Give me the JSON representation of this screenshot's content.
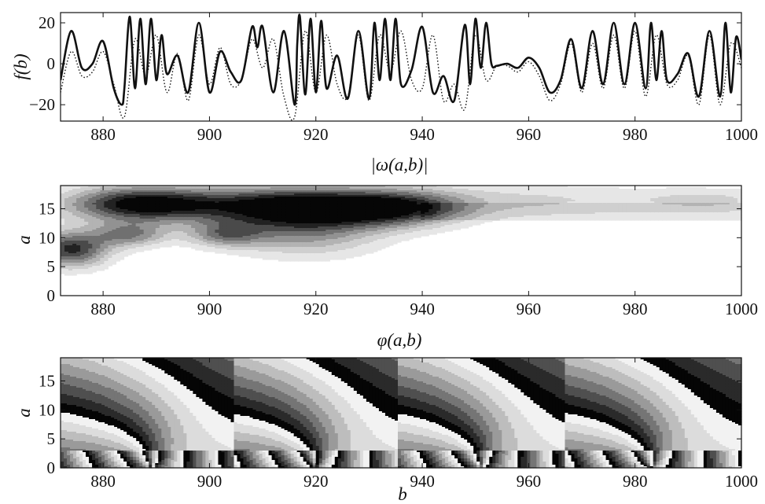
{
  "chart_data": [
    {
      "type": "line",
      "ylabel": "f(b)",
      "xlim": [
        872,
        1000
      ],
      "ylim": [
        -28,
        25
      ],
      "x_ticks": [
        "880",
        "900",
        "920",
        "940",
        "960",
        "980",
        "1000"
      ],
      "y_ticks": [
        "20",
        "0",
        "−20"
      ],
      "series": [
        {
          "style": "solid",
          "x": [
            872,
            874,
            876,
            878,
            880,
            882,
            883.5,
            884,
            885,
            886,
            887,
            888,
            889,
            890,
            891,
            892,
            894,
            896,
            898,
            900,
            902,
            904,
            906,
            908,
            909,
            910,
            912,
            914,
            916,
            916.5,
            917,
            918,
            919,
            920,
            921,
            922,
            924,
            926,
            928,
            930,
            931,
            932,
            933,
            934,
            935,
            936,
            938,
            940,
            942,
            944,
            946,
            948,
            949,
            950,
            951,
            952,
            953,
            954,
            956,
            958,
            960,
            962,
            964,
            966,
            968,
            970,
            972,
            974,
            976,
            978,
            980,
            982,
            983,
            984,
            985,
            986,
            988,
            990,
            992,
            994,
            996,
            997,
            998,
            999,
            1000
          ],
          "y": [
            -8,
            16,
            -2,
            0,
            11,
            -12,
            -20,
            -12,
            23,
            -12,
            22,
            -10,
            22,
            -8,
            14,
            -5,
            4,
            -14,
            20,
            -14,
            6,
            -4,
            -8,
            18,
            8,
            18,
            -14,
            16,
            -20,
            10,
            23,
            -15,
            22,
            -14,
            21,
            -12,
            4,
            -17,
            16,
            -17,
            20,
            -8,
            22,
            -8,
            22,
            -10,
            -3,
            18,
            -14,
            -6,
            -18,
            19,
            -10,
            22,
            -2,
            20,
            0,
            -1,
            0,
            -2,
            3,
            -2,
            -14,
            -8,
            12,
            -12,
            16,
            -10,
            20,
            -10,
            20,
            -12,
            20,
            -8,
            16,
            -8,
            -5,
            5,
            -16,
            16,
            -16,
            20,
            -14,
            13,
            2
          ]
        },
        {
          "style": "dotted",
          "x": [
            872,
            874,
            876,
            878,
            880,
            882,
            884,
            886,
            888,
            890,
            892,
            894,
            896,
            898,
            900,
            902,
            904,
            906,
            908,
            910,
            912,
            914,
            916,
            918,
            920,
            922,
            924,
            926,
            928,
            930,
            932,
            934,
            936,
            938,
            940,
            942,
            944,
            946,
            948,
            950,
            952,
            954,
            956,
            958,
            960,
            962,
            964,
            966,
            968,
            970,
            972,
            974,
            976,
            978,
            980,
            982,
            984,
            986,
            988,
            990,
            992,
            994,
            996,
            998,
            1000
          ],
          "y": [
            -14,
            6,
            -6,
            -4,
            6,
            -10,
            -26,
            12,
            -6,
            14,
            -14,
            5,
            -18,
            14,
            -10,
            8,
            -10,
            -8,
            12,
            -2,
            12,
            -16,
            -26,
            16,
            -14,
            14,
            -10,
            -16,
            14,
            -18,
            14,
            -4,
            16,
            -8,
            -12,
            14,
            -18,
            -10,
            -22,
            14,
            -8,
            -1,
            -1,
            -4,
            1,
            -6,
            -18,
            -10,
            10,
            -14,
            10,
            -12,
            14,
            -12,
            16,
            -16,
            14,
            -10,
            -8,
            4,
            -20,
            14,
            -20,
            10,
            -2
          ]
        }
      ]
    },
    {
      "type": "heatmap",
      "title": "|ω(a,b)|",
      "xlabel": "",
      "ylabel": "a",
      "xlim": [
        872,
        1000
      ],
      "ylim": [
        0,
        19
      ],
      "x_ticks": [
        "880",
        "900",
        "920",
        "940",
        "960",
        "980",
        "1000"
      ],
      "y_ticks": [
        "0",
        "5",
        "10",
        "15"
      ],
      "levels": 8,
      "ridges": [
        {
          "b": 887,
          "a": 15.8,
          "sb": 10,
          "sa": 2.2,
          "amp": 1.0
        },
        {
          "b": 915,
          "a": 15.5,
          "sb": 13,
          "sa": 2.4,
          "amp": 1.0
        },
        {
          "b": 935,
          "a": 15.0,
          "sb": 9,
          "sa": 2.2,
          "amp": 0.75
        },
        {
          "b": 874,
          "a": 8.0,
          "sb": 5,
          "sa": 2.2,
          "amp": 0.85
        },
        {
          "b": 885,
          "a": 10.5,
          "sb": 5,
          "sa": 1.5,
          "amp": 0.55
        },
        {
          "b": 903,
          "a": 10.5,
          "sb": 5,
          "sa": 1.5,
          "amp": 0.5
        },
        {
          "b": 918,
          "a": 11.0,
          "sb": 10,
          "sa": 3.0,
          "amp": 0.5
        },
        {
          "b": 960,
          "a": 16.5,
          "sb": 20,
          "sa": 2.0,
          "amp": 0.25
        },
        {
          "b": 995,
          "a": 16.5,
          "sb": 10,
          "sa": 1.5,
          "amp": 0.22
        }
      ]
    },
    {
      "type": "heatmap",
      "title": "φ(a,b)",
      "xlabel": "b",
      "ylabel": "a",
      "xlim": [
        872,
        1000
      ],
      "ylim": [
        0,
        19
      ],
      "x_ticks": [
        "880",
        "900",
        "920",
        "940",
        "960",
        "980",
        "1000"
      ],
      "y_ticks": [
        "0",
        "5",
        "10",
        "15"
      ],
      "levels": 8,
      "cone_vertices_b": [
        889,
        920,
        951,
        983
      ]
    }
  ]
}
